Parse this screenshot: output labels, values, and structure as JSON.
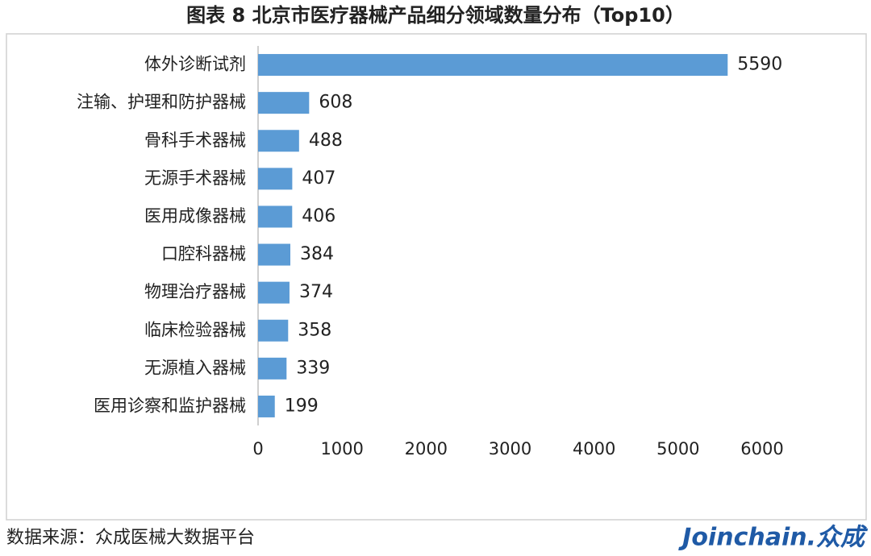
{
  "chart_data": {
    "type": "bar",
    "orientation": "horizontal",
    "title": "图表 8   北京市医疗器械产品细分领域数量分布（Top10）",
    "categories": [
      "体外诊断试剂",
      "注输、护理和防护器械",
      "骨科手术器械",
      "无源手术器械",
      "医用成像器械",
      "口腔科器械",
      "物理治疗器械",
      "临床检验器械",
      "无源植入器械",
      "医用诊察和监护器械"
    ],
    "values": [
      5590,
      608,
      488,
      407,
      406,
      384,
      374,
      358,
      339,
      199
    ],
    "color": "#5b9bd5",
    "xlim": [
      0,
      6000
    ],
    "xticks": [
      0,
      1000,
      2000,
      3000,
      4000,
      5000,
      6000
    ],
    "grid": false
  },
  "footer": {
    "source": "数据来源：众成医械大数据平台",
    "logo": "Joinchain.众成"
  }
}
